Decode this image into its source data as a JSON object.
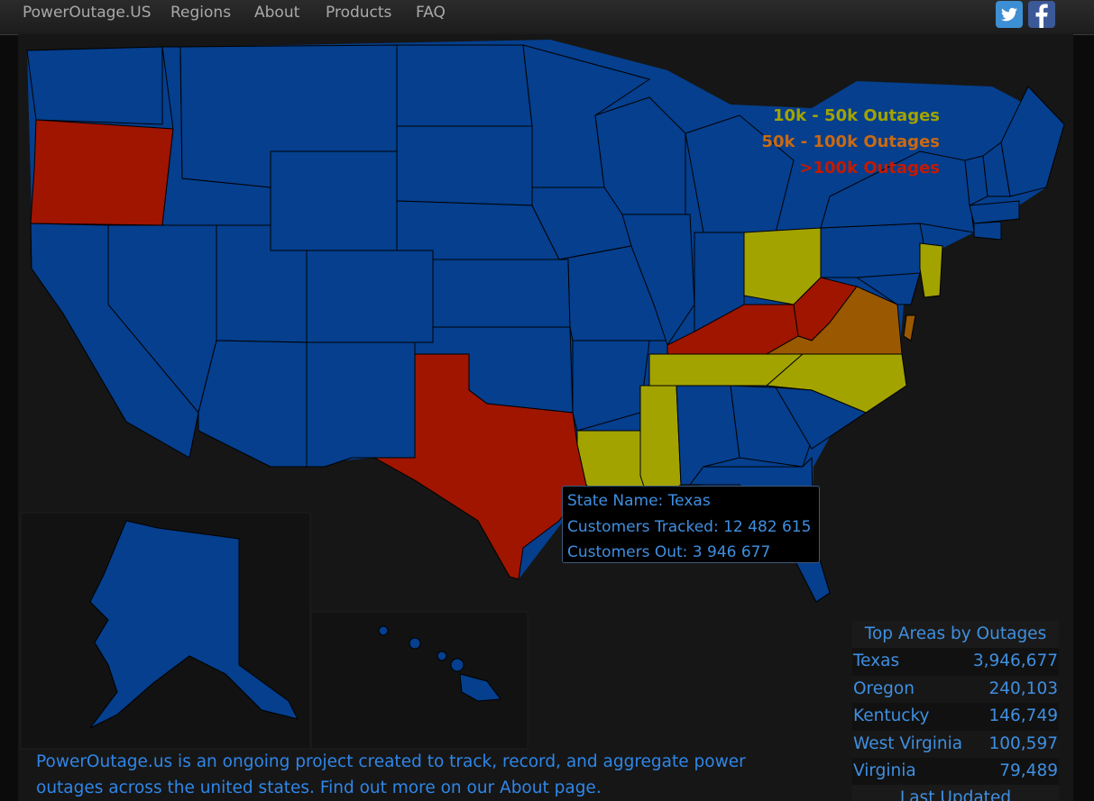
{
  "nav": {
    "brand": "PowerOutage.US",
    "links": [
      "Regions",
      "About",
      "Products",
      "FAQ"
    ],
    "social": [
      "twitter-icon",
      "facebook-icon"
    ]
  },
  "legend": [
    {
      "label": "10k - 50k Outages",
      "color": "#a3a300"
    },
    {
      "label": "50k - 100k Outages",
      "color": "#c86a14"
    },
    {
      "label": ">100k Outages",
      "color": "#c21a00"
    }
  ],
  "map_colors": {
    "normal": "#053f8e",
    "low": "#a3a300",
    "mid": "#9a5800",
    "high": "#9f1500",
    "water": "#101010"
  },
  "tooltip": {
    "state_name": "State Name: Texas",
    "tracked": "Customers Tracked: 12 482 615",
    "out": "Customers Out: 3 946 677"
  },
  "footer": {
    "text": "PowerOutage.us is an ongoing project created to track, record, and aggregate power outages across the united states. Find out more on our About page."
  },
  "top_areas": {
    "title": "Top Areas by Outages",
    "rows": [
      {
        "name": "Texas",
        "value": "3,946,677"
      },
      {
        "name": "Oregon",
        "value": "240,103"
      },
      {
        "name": "Kentucky",
        "value": "146,749"
      },
      {
        "name": "West Virginia",
        "value": "100,597"
      },
      {
        "name": "Virginia",
        "value": "79,489"
      }
    ],
    "last_updated": "Last Updated"
  }
}
